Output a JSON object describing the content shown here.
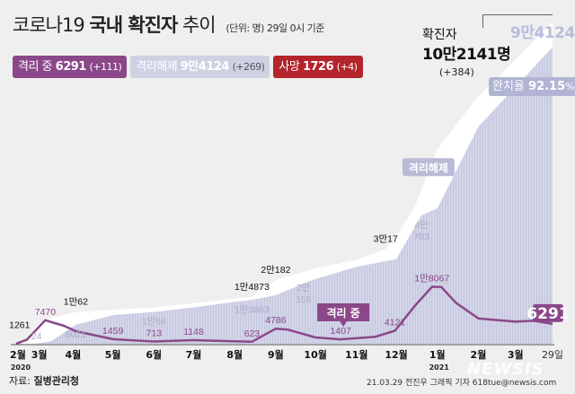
{
  "header": {
    "title_prefix": "코로나19",
    "title_bold": "국내 확진자",
    "title_suffix": "추이",
    "unit_note": "(단위: 명) 29일 0시 기준"
  },
  "legend": {
    "isolated": {
      "label": "격리 중",
      "value": "6291",
      "change": "(+111)",
      "color": "#8b4789"
    },
    "released": {
      "label": "격리해제",
      "value": "9만4124",
      "change": "(+269)",
      "color": "#cfd1e3"
    },
    "death": {
      "label": "사망",
      "value": "1726",
      "change": "(+4)",
      "color": "#b3242b"
    }
  },
  "totals": {
    "label": "확진자",
    "value": "10만2141명",
    "change": "(+384)",
    "released_value": "9만4124",
    "recovery_label": "완치율",
    "recovery_value": "92.15",
    "recovery_unit": "%"
  },
  "footer": {
    "source_label": "자료:",
    "source": "질병관리청",
    "credit": "21.03.29 전진우 그래픽 기자 618tue@newsis.com",
    "watermark": "NEWSIS"
  },
  "chart_data": {
    "type": "area",
    "title": "코로나19 국내 확진자 추이",
    "x_ticks": [
      {
        "date": "2020-02-20",
        "label": "2월"
      },
      {
        "date": "2020-03-03",
        "label": "3월"
      },
      {
        "date": "2020-04-01",
        "label": "4월"
      },
      {
        "date": "2020-05-01",
        "label": "5월"
      },
      {
        "date": "2020-06-01",
        "label": "6월"
      },
      {
        "date": "2020-07-01",
        "label": "7월"
      },
      {
        "date": "2020-08-01",
        "label": "8월"
      },
      {
        "date": "2020-09-01",
        "label": "9월"
      },
      {
        "date": "2020-10-01",
        "label": "10월"
      },
      {
        "date": "2020-11-01",
        "label": "11월"
      },
      {
        "date": "2020-12-01",
        "label": "12월"
      },
      {
        "date": "2021-01-01",
        "label": "1월"
      },
      {
        "date": "2021-02-01",
        "label": "2월"
      },
      {
        "date": "2021-03-01",
        "label": "3월"
      },
      {
        "date": "2021-03-29",
        "label": "29일"
      }
    ],
    "year_labels": [
      {
        "date": "2020-02-20",
        "label": "2020"
      },
      {
        "date": "2021-01-01",
        "label": "2021"
      }
    ],
    "x_range": [
      "2020-02-18",
      "2021-03-29"
    ],
    "y_range": [
      0,
      103000
    ],
    "grid": false,
    "series": [
      {
        "name": "확진자",
        "color": "#ffffff",
        "points": [
          [
            "2020-02-18",
            31
          ],
          [
            "2020-02-26",
            1261
          ],
          [
            "2020-03-03",
            5186
          ],
          [
            "2020-03-10",
            7513
          ],
          [
            "2020-03-20",
            8652
          ],
          [
            "2020-04-03",
            10062
          ],
          [
            "2020-05-01",
            10774
          ],
          [
            "2020-06-01",
            11541
          ],
          [
            "2020-07-01",
            12850
          ],
          [
            "2020-08-01",
            14336
          ],
          [
            "2020-08-14",
            14873
          ],
          [
            "2020-09-01",
            20182
          ],
          [
            "2020-10-01",
            23889
          ],
          [
            "2020-11-01",
            26635
          ],
          [
            "2020-11-23",
            30017
          ],
          [
            "2020-12-01",
            34201
          ],
          [
            "2020-12-15",
            43484
          ],
          [
            "2021-01-01",
            61769
          ],
          [
            "2021-02-01",
            78508
          ],
          [
            "2021-03-01",
            90029
          ],
          [
            "2021-03-29",
            102141
          ]
        ]
      },
      {
        "name": "격리해제",
        "color": "#cfd1e3",
        "points": [
          [
            "2020-02-18",
            10
          ],
          [
            "2020-03-03",
            24
          ],
          [
            "2020-03-15",
            714
          ],
          [
            "2020-04-03",
            6021
          ],
          [
            "2020-05-01",
            9072
          ],
          [
            "2020-06-01",
            10066
          ],
          [
            "2020-07-01",
            11537
          ],
          [
            "2020-08-01",
            13280
          ],
          [
            "2020-08-14",
            13863
          ],
          [
            "2020-09-01",
            15396
          ],
          [
            "2020-09-28",
            20158
          ],
          [
            "2020-11-01",
            24395
          ],
          [
            "2020-12-01",
            26825
          ],
          [
            "2020-12-20",
            40703
          ],
          [
            "2021-01-01",
            42953
          ],
          [
            "2021-02-01",
            68858
          ],
          [
            "2021-03-01",
            81409
          ],
          [
            "2021-03-29",
            94124
          ]
        ]
      },
      {
        "name": "격리 중",
        "color": "#8b4789",
        "points": [
          [
            "2020-02-18",
            30
          ],
          [
            "2020-02-26",
            1261
          ],
          [
            "2020-03-11",
            7470
          ],
          [
            "2020-03-25",
            5684
          ],
          [
            "2020-04-03",
            3979
          ],
          [
            "2020-05-01",
            1459
          ],
          [
            "2020-06-01",
            713
          ],
          [
            "2020-07-01",
            1148
          ],
          [
            "2020-08-14",
            623
          ],
          [
            "2020-09-01",
            4786
          ],
          [
            "2020-09-10",
            4500
          ],
          [
            "2020-10-01",
            2000
          ],
          [
            "2020-10-20",
            1407
          ],
          [
            "2020-11-15",
            2200
          ],
          [
            "2020-11-30",
            4121
          ],
          [
            "2020-12-15",
            12000
          ],
          [
            "2020-12-28",
            18067
          ],
          [
            "2021-01-04",
            17990
          ],
          [
            "2021-01-15",
            13000
          ],
          [
            "2021-02-01",
            8000
          ],
          [
            "2021-03-01",
            7000
          ],
          [
            "2021-03-15",
            7300
          ],
          [
            "2021-03-29",
            6291
          ]
        ]
      }
    ],
    "annotations": [
      {
        "series": "확진자",
        "date": "2020-02-26",
        "value": 1261,
        "text": "1261"
      },
      {
        "series": "확진자",
        "date": "2020-04-03",
        "value": 10062,
        "text": "1만62"
      },
      {
        "series": "확진자",
        "date": "2020-08-14",
        "value": 14873,
        "text": "1만4873"
      },
      {
        "series": "확진자",
        "date": "2020-09-01",
        "value": 20182,
        "text": "2만182"
      },
      {
        "series": "확진자",
        "date": "2020-11-23",
        "value": 30017,
        "text": "3만17"
      },
      {
        "series": "격리해제",
        "date": "2020-03-03",
        "value": 24,
        "text": "24"
      },
      {
        "series": "격리해제",
        "date": "2020-04-03",
        "value": 6021,
        "text": "6021"
      },
      {
        "series": "격리해제",
        "date": "2020-06-01",
        "value": 10066,
        "text": "1만66"
      },
      {
        "series": "격리해제",
        "date": "2020-08-14",
        "value": 13863,
        "text": "1만3863"
      },
      {
        "series": "격리해제",
        "date": "2020-09-28",
        "value": 20158,
        "text": "2만 158"
      },
      {
        "series": "격리해제",
        "date": "2020-12-20",
        "value": 40703,
        "text": "4만 703"
      },
      {
        "series": "격리 중",
        "date": "2020-03-11",
        "value": 7470,
        "text": "7470"
      },
      {
        "series": "격리 중",
        "date": "2020-05-01",
        "value": 1459,
        "text": "1459"
      },
      {
        "series": "격리 중",
        "date": "2020-06-01",
        "value": 713,
        "text": "713"
      },
      {
        "series": "격리 중",
        "date": "2020-07-01",
        "value": 1148,
        "text": "1148"
      },
      {
        "series": "격리 중",
        "date": "2020-08-14",
        "value": 623,
        "text": "623"
      },
      {
        "series": "격리 중",
        "date": "2020-09-01",
        "value": 4786,
        "text": "4786"
      },
      {
        "series": "격리 중",
        "date": "2020-10-20",
        "value": 1407,
        "text": "1407"
      },
      {
        "series": "격리 중",
        "date": "2020-11-30",
        "value": 4121,
        "text": "4121"
      },
      {
        "series": "격리 중",
        "date": "2020-12-28",
        "value": 18067,
        "text": "1만8067"
      },
      {
        "series": "격리 중",
        "date": "2021-03-29",
        "value": 6291,
        "text": "6291"
      }
    ],
    "series_labels": [
      {
        "series": "격리해제",
        "text": "격리해제"
      },
      {
        "series": "격리 중",
        "text": "격리 중"
      }
    ]
  }
}
